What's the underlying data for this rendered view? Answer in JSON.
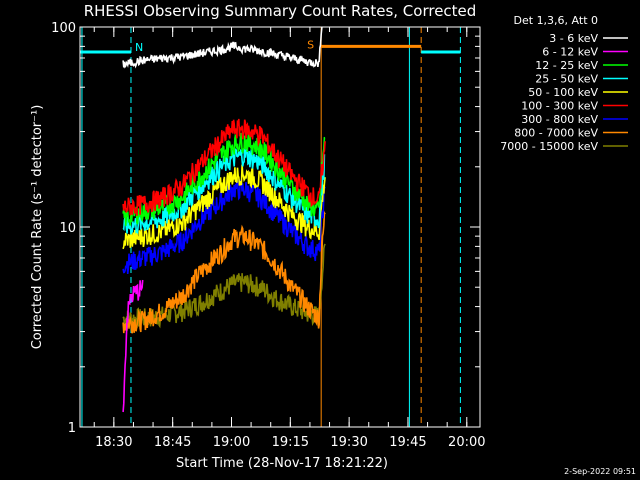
{
  "chart_data": {
    "type": "line",
    "title": "RHESSI Observing Summary Count Rates, Corrected",
    "xlabel": "Start Time (28-Nov-17 18:21:22)",
    "ylabel": "Corrected Count Rate (s⁻¹ detector⁻¹)",
    "yscale": "log",
    "ylim": [
      1,
      100
    ],
    "xlim_minutes": [
      0,
      102
    ],
    "yticks": [
      {
        "label": "1",
        "value": 1
      },
      {
        "label": "10",
        "value": 10
      },
      {
        "label": "100",
        "value": 100
      }
    ],
    "xticks": [
      {
        "label": "18:30",
        "minute": 8.63
      },
      {
        "label": "18:45",
        "minute": 23.63
      },
      {
        "label": "19:00",
        "minute": 38.63
      },
      {
        "label": "19:15",
        "minute": 53.63
      },
      {
        "label": "19:30",
        "minute": 68.63
      },
      {
        "label": "19:45",
        "minute": 83.63
      },
      {
        "label": "20:00",
        "minute": 98.63
      }
    ],
    "legend_header": "Det 1,3,6, Att 0",
    "legend_position": "top-right, outside plot",
    "grid": false,
    "series": [
      {
        "name": "3 - 6 keV",
        "color": "#ffffff",
        "x": [
          11,
          16,
          21,
          26,
          31,
          36,
          39,
          42,
          46,
          50,
          54,
          58,
          61,
          62.5
        ],
        "y": [
          65,
          68,
          70,
          71,
          74,
          77,
          80,
          78,
          76,
          73,
          70,
          67,
          66,
          150
        ]
      },
      {
        "name": "6 - 12 keV",
        "color": "#ff00ff",
        "x": [
          11,
          11.5,
          12,
          13,
          16
        ],
        "y": [
          1.2,
          2.0,
          3.5,
          4.5,
          5.0
        ]
      },
      {
        "name": "12 - 25 keV",
        "color": "#00ff00",
        "x": [
          11,
          16,
          21,
          26,
          31,
          36,
          39,
          42,
          46,
          50,
          54,
          58,
          61,
          62.5
        ],
        "y": [
          11,
          12,
          12.5,
          14,
          18,
          23,
          26,
          27,
          25,
          20,
          16,
          13,
          12,
          28
        ]
      },
      {
        "name": "25 - 50 keV",
        "color": "#00ffff",
        "x": [
          11,
          16,
          21,
          26,
          31,
          36,
          39,
          42,
          46,
          50,
          54,
          58,
          61,
          62.5
        ],
        "y": [
          10,
          10.5,
          11,
          12.5,
          16,
          20,
          22,
          23,
          21,
          17,
          14,
          11.5,
          11,
          22
        ]
      },
      {
        "name": "50 - 100 keV",
        "color": "#ffff00",
        "x": [
          11,
          16,
          21,
          26,
          31,
          36,
          39,
          42,
          46,
          50,
          54,
          58,
          61,
          62.5
        ],
        "y": [
          8.5,
          9,
          9.5,
          10.5,
          13,
          16,
          18,
          18.5,
          17,
          14,
          11.5,
          10,
          9.5,
          18
        ]
      },
      {
        "name": "100 - 300 keV",
        "color": "#ff0000",
        "x": [
          11,
          16,
          21,
          26,
          31,
          36,
          39,
          42,
          46,
          50,
          54,
          58,
          61,
          62.5
        ],
        "y": [
          12.5,
          13,
          14,
          16,
          21,
          27,
          31,
          31,
          29,
          23,
          18,
          15,
          13.5,
          25
        ]
      },
      {
        "name": "300 - 800 keV",
        "color": "#0000ff",
        "x": [
          11,
          16,
          21,
          26,
          31,
          36,
          39,
          42,
          46,
          50,
          54,
          58,
          61,
          62.5
        ],
        "y": [
          6.5,
          7,
          7.5,
          8.5,
          11,
          13.5,
          15.5,
          15.5,
          14,
          11.5,
          9.5,
          8,
          7.5,
          15
        ]
      },
      {
        "name": "800 - 7000 keV",
        "color": "#ff8800",
        "x": [
          11,
          16,
          21,
          26,
          31,
          36,
          39,
          42,
          46,
          50,
          54,
          58,
          61,
          62.5
        ],
        "y": [
          3.3,
          3.4,
          3.8,
          4.5,
          6,
          7.5,
          8.8,
          9,
          8,
          6.5,
          5,
          4,
          3.5,
          12
        ]
      },
      {
        "name": "7000 - 15000 keV",
        "color": "#808000",
        "x": [
          11,
          16,
          21,
          26,
          31,
          36,
          39,
          42,
          46,
          50,
          54,
          58,
          61,
          62.5
        ],
        "y": [
          3.5,
          3.5,
          3.6,
          3.8,
          4.2,
          4.8,
          5.2,
          5.3,
          5,
          4.4,
          4,
          3.7,
          3.6,
          8
        ]
      }
    ],
    "cyan_flags": [
      {
        "label": "N",
        "color": "#00ffff",
        "line_minutes": [
          0,
          13
        ],
        "y": 75
      },
      {
        "label": "",
        "color": "#00ffff",
        "line_minutes": [
          87,
          97
        ],
        "y": 75
      }
    ],
    "saa_flag": {
      "label": "S",
      "color": "#ff8800",
      "line_minutes": [
        61.5,
        87
      ],
      "y": 80
    },
    "vertical_lines": [
      {
        "minute": 0.5,
        "color": "#00ffff",
        "dashed": false
      },
      {
        "minute": 13,
        "color": "#00ffff",
        "dashed": true
      },
      {
        "minute": 61.5,
        "color": "#ff8800",
        "dashed": false
      },
      {
        "minute": 84,
        "color": "#00ffff",
        "dashed": false
      },
      {
        "minute": 87,
        "color": "#ff8800",
        "dashed": true
      },
      {
        "minute": 97,
        "color": "#00ffff",
        "dashed": true
      }
    ],
    "timestamp": "2-Sep-2022 09:51"
  }
}
